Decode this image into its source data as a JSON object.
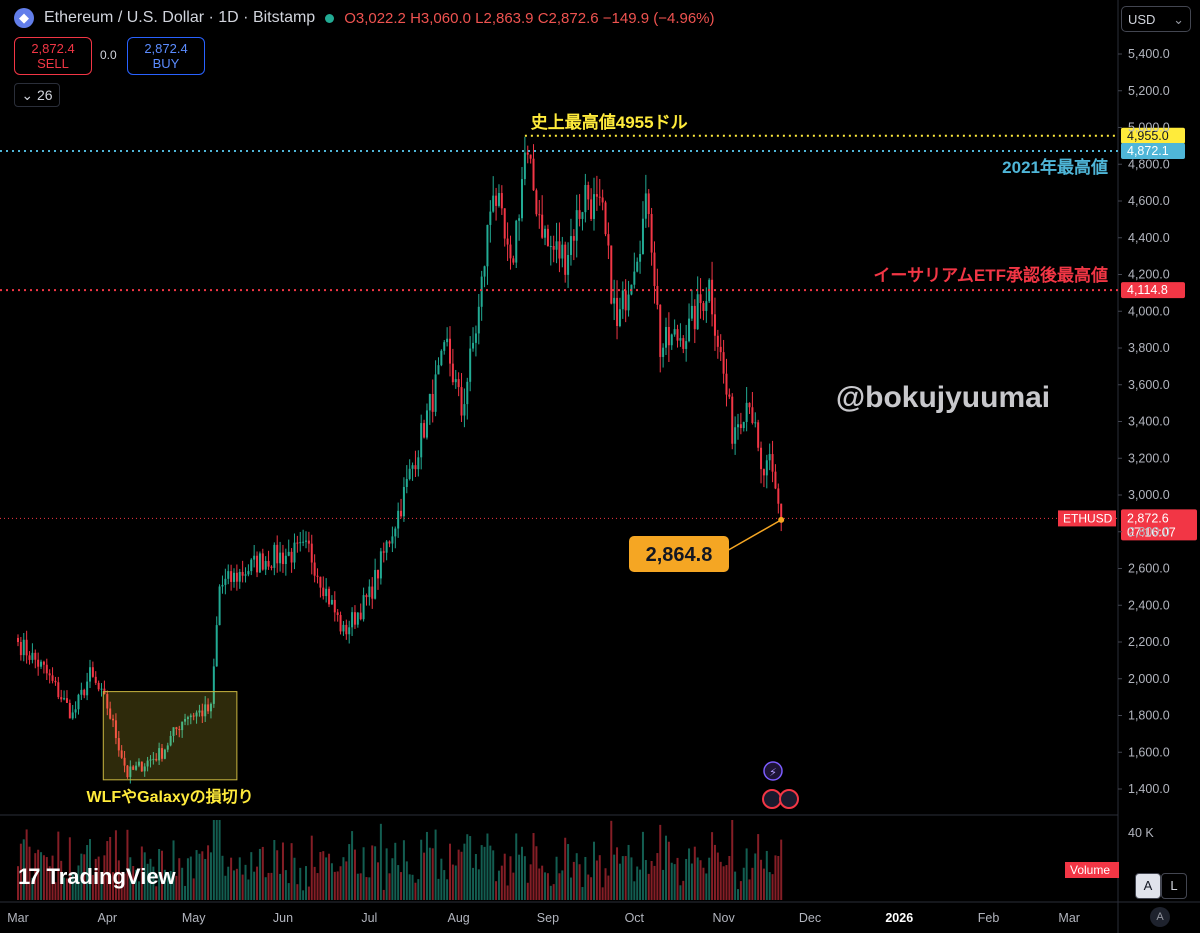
{
  "header": {
    "symbol": "Ethereum / U.S. Dollar · 1D · Bitstamp",
    "open": "O3,022.2",
    "high": "H3,060.0",
    "low": "L2,863.9",
    "close": "C2,872.6",
    "change": "−149.9 (−4.96%)"
  },
  "trade": {
    "sell_price": "2,872.4",
    "sell_label": "SELL",
    "spread": "0.0",
    "buy_price": "2,872.4",
    "buy_label": "BUY"
  },
  "indicators_count": "26",
  "currency": "USD",
  "brand": "TradingView",
  "scale_buttons": {
    "auto": "A",
    "log": "L",
    "auto_circle": "A"
  },
  "colors": {
    "up": "#22ab94",
    "down": "#f23645",
    "ath": "#ffeb3b",
    "high2021": "#4fb6d8",
    "etf": "#f23645",
    "callout": "#f5a623"
  },
  "chart_data": {
    "type": "candlestick",
    "symbol": "ETHUSD",
    "ylim": [
      1300,
      5600
    ],
    "y_ticks": [
      1400,
      1600,
      1800,
      2000,
      2200,
      2400,
      2600,
      2800,
      3000,
      3200,
      3400,
      3600,
      3800,
      4000,
      4200,
      4400,
      4600,
      4800,
      5000,
      5200,
      5400
    ],
    "y_tick_labels": [
      "1,400.0",
      "1,600.0",
      "1,800.0",
      "2,000.0",
      "2,200.0",
      "2,400.0",
      "2,600.0",
      "2,800.0",
      "3,000.0",
      "3,200.0",
      "3,400.0",
      "3,600.0",
      "3,800.0",
      "4,000.0",
      "4,200.0",
      "4,400.0",
      "4,600.0",
      "4,800.0",
      "5,000.0",
      "5,200.0",
      "5,400.0"
    ],
    "x_labels": [
      "Mar",
      "Apr",
      "May",
      "Jun",
      "Jul",
      "Aug",
      "Sep",
      "Oct",
      "Nov",
      "Dec",
      "2026",
      "Feb",
      "Mar"
    ],
    "x_label_dates": [
      "2025-03-01",
      "2025-04-01",
      "2025-05-01",
      "2025-06-01",
      "2025-07-01",
      "2025-08-01",
      "2025-09-01",
      "2025-10-01",
      "2025-11-01",
      "2025-12-01",
      "2026-01-01",
      "2026-02-01",
      "2026-03-01"
    ],
    "price_path": [
      {
        "date": "2025-03-01",
        "price": 2200
      },
      {
        "date": "2025-03-10",
        "price": 2050
      },
      {
        "date": "2025-03-20",
        "price": 1800
      },
      {
        "date": "2025-03-26",
        "price": 2020
      },
      {
        "date": "2025-04-01",
        "price": 1850
      },
      {
        "date": "2025-04-08",
        "price": 1480
      },
      {
        "date": "2025-04-20",
        "price": 1600
      },
      {
        "date": "2025-04-28",
        "price": 1800
      },
      {
        "date": "2025-05-07",
        "price": 1830
      },
      {
        "date": "2025-05-10",
        "price": 2500
      },
      {
        "date": "2025-05-25",
        "price": 2650
      },
      {
        "date": "2025-06-10",
        "price": 2700
      },
      {
        "date": "2025-06-22",
        "price": 2250
      },
      {
        "date": "2025-07-01",
        "price": 2450
      },
      {
        "date": "2025-07-12",
        "price": 2950
      },
      {
        "date": "2025-07-28",
        "price": 3800
      },
      {
        "date": "2025-08-02",
        "price": 3450
      },
      {
        "date": "2025-08-08",
        "price": 4000
      },
      {
        "date": "2025-08-13",
        "price": 4700
      },
      {
        "date": "2025-08-19",
        "price": 4200
      },
      {
        "date": "2025-08-24",
        "price": 4850
      },
      {
        "date": "2025-09-01",
        "price": 4350
      },
      {
        "date": "2025-09-07",
        "price": 4300
      },
      {
        "date": "2025-09-14",
        "price": 4650
      },
      {
        "date": "2025-09-20",
        "price": 4500
      },
      {
        "date": "2025-09-25",
        "price": 3900
      },
      {
        "date": "2025-10-01",
        "price": 4300
      },
      {
        "date": "2025-10-06",
        "price": 4600
      },
      {
        "date": "2025-10-10",
        "price": 3800
      },
      {
        "date": "2025-10-20",
        "price": 3900
      },
      {
        "date": "2025-10-27",
        "price": 4150
      },
      {
        "date": "2025-11-04",
        "price": 3350
      },
      {
        "date": "2025-11-10",
        "price": 3550
      },
      {
        "date": "2025-11-14",
        "price": 3100
      },
      {
        "date": "2025-11-17",
        "price": 3150
      },
      {
        "date": "2025-11-21",
        "price": 2872.6
      }
    ],
    "volume_axis_label": "40 K",
    "volume_label": "Volume",
    "last_price": 2872.6,
    "last_price_label": "2,872.6",
    "countdown": "07:16:07",
    "annotations": [
      {
        "text": "史上最高値4955ドル",
        "price": 4955,
        "label": "4,955.0",
        "color": "#ffeb3b"
      },
      {
        "text": "2021年最高値",
        "price": 4872.1,
        "label": "4,872.1",
        "color": "#4fb6d8"
      },
      {
        "text": "イーサリアムETF承認後最高値",
        "price": 4114.8,
        "label": "4,114.8",
        "color": "#f23645"
      }
    ],
    "callout": {
      "text": "2,864.8",
      "price": 2864.8,
      "date": "2025-11-21"
    },
    "box": {
      "text": "WLFやGalaxyの損切り",
      "date_from": "2025-04-01",
      "date_to": "2025-05-16",
      "price_low": 1450,
      "price_high": 1930
    },
    "watermark": "@bokujyuumai"
  }
}
